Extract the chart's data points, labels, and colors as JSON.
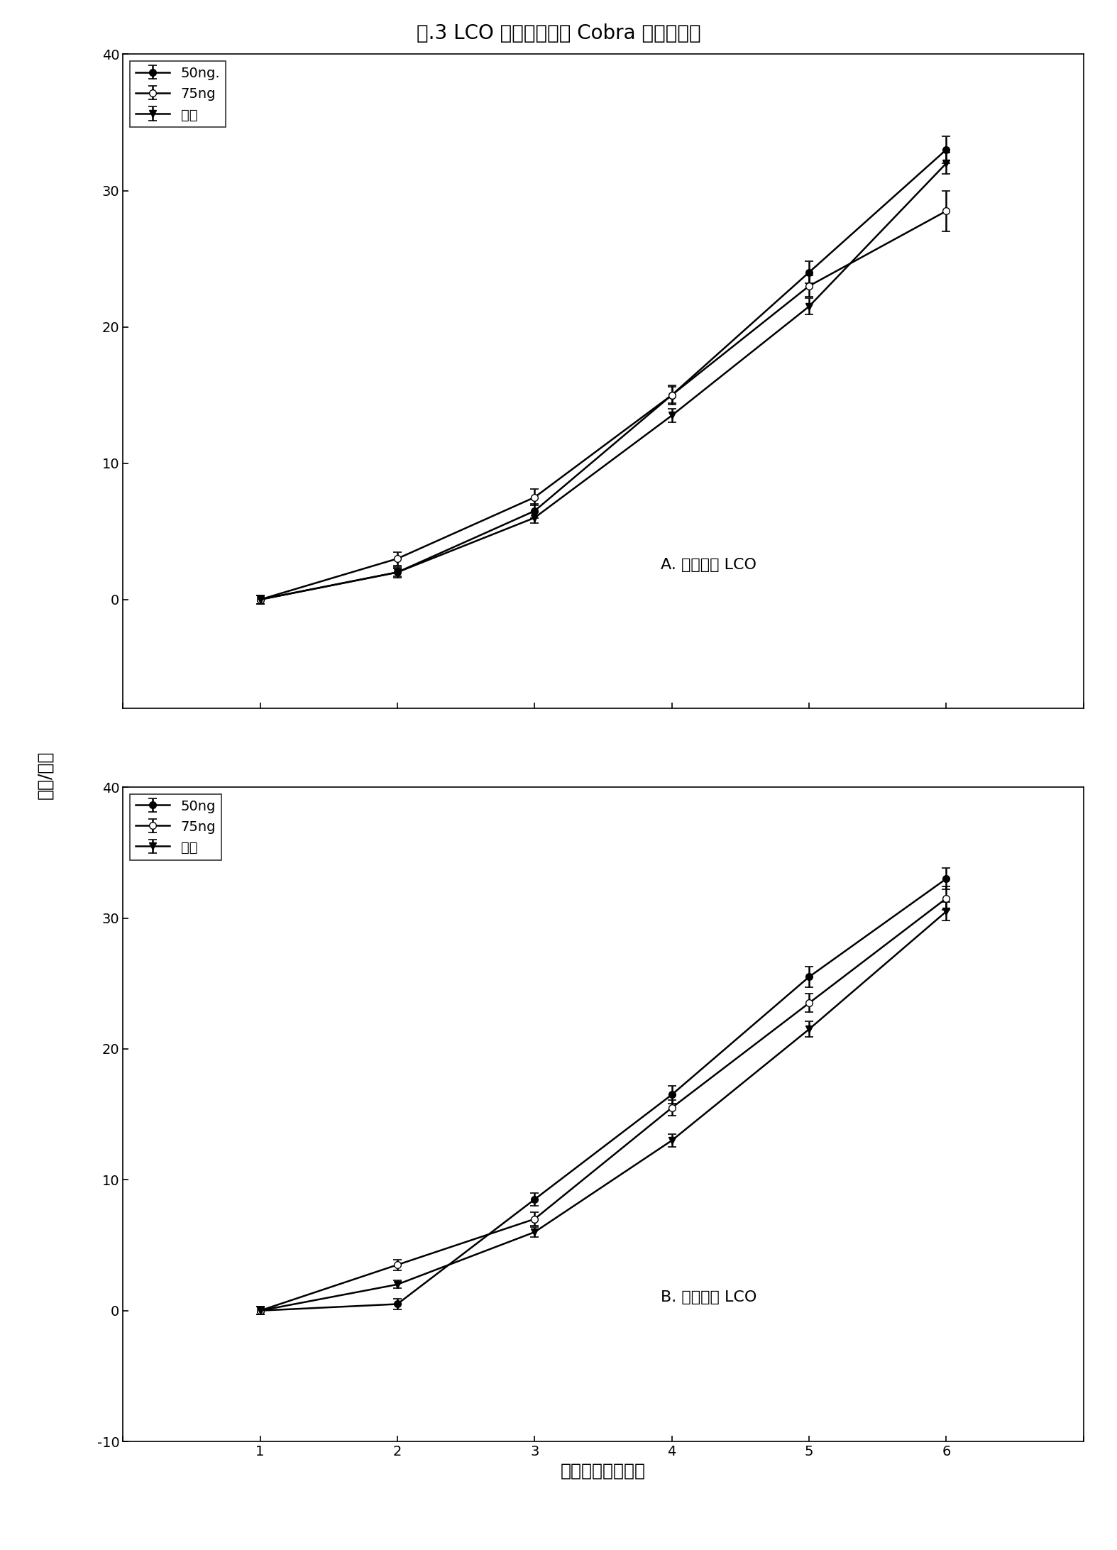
{
  "title": "图.3 LCO 剂量和时间对 Cobra 花数的影响",
  "ylabel": "花数/植物",
  "xlabel": "第二次施用后周数",
  "panel_A_label": "A. 单次施用 LCO",
  "panel_B_label": "B. 两次施用 LCO",
  "x": [
    1,
    2,
    3,
    4,
    5,
    6
  ],
  "panel_A": {
    "series_50ng": [
      0.0,
      2.0,
      6.5,
      15.0,
      24.0,
      33.0
    ],
    "series_75ng": [
      0.0,
      3.0,
      7.5,
      15.0,
      23.0,
      28.5
    ],
    "series_control": [
      0.0,
      2.0,
      6.0,
      13.5,
      21.5,
      32.0
    ],
    "err_50ng": [
      0.3,
      0.4,
      0.5,
      0.7,
      0.8,
      1.0
    ],
    "err_75ng": [
      0.3,
      0.5,
      0.6,
      0.6,
      0.8,
      1.5
    ],
    "err_control": [
      0.3,
      0.3,
      0.4,
      0.5,
      0.6,
      0.8
    ]
  },
  "panel_B": {
    "series_50ng": [
      0.0,
      0.5,
      8.5,
      16.5,
      25.5,
      33.0
    ],
    "series_75ng": [
      0.0,
      3.5,
      7.0,
      15.5,
      23.5,
      31.5
    ],
    "series_control": [
      0.0,
      2.0,
      6.0,
      13.0,
      21.5,
      30.5
    ],
    "err_50ng": [
      0.3,
      0.4,
      0.5,
      0.7,
      0.8,
      0.8
    ],
    "err_75ng": [
      0.3,
      0.4,
      0.5,
      0.6,
      0.7,
      0.9
    ],
    "err_control": [
      0.3,
      0.3,
      0.4,
      0.5,
      0.6,
      0.7
    ]
  },
  "legend_A": [
    "50ng.",
    "75ng",
    "对照"
  ],
  "legend_B": [
    "50ng",
    "75ng",
    "对照"
  ],
  "xlim": [
    0,
    7
  ],
  "ylim_A": [
    -8,
    40
  ],
  "ylim_B": [
    -10,
    40
  ],
  "yticks_A": [
    0,
    10,
    20,
    30,
    40
  ],
  "yticks_B": [
    -10,
    0,
    10,
    20,
    30,
    40
  ],
  "xticks": [
    0,
    1,
    2,
    3,
    4,
    5,
    6,
    7
  ],
  "title_fontsize": 20,
  "label_fontsize": 16,
  "tick_fontsize": 14,
  "legend_fontsize": 14,
  "annot_fontsize": 16
}
